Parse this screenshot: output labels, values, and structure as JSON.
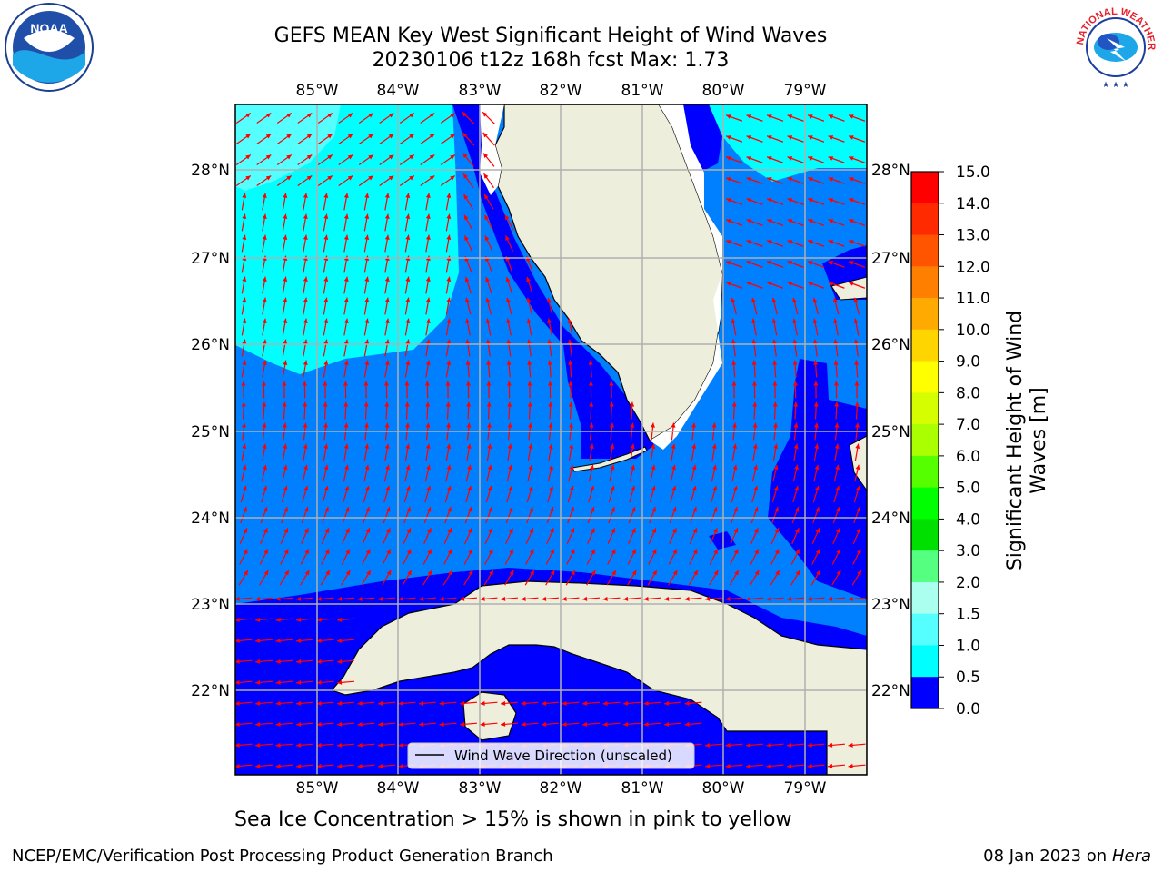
{
  "title_line1": "GEFS MEAN Key West Significant Height of Wind Waves",
  "title_line2": "20230106 t12z 168h fcst   Max: 1.73",
  "lon_ticks": [
    "85°W",
    "84°W",
    "83°W",
    "82°W",
    "81°W",
    "80°W",
    "79°W"
  ],
  "lat_ticks": [
    "28°N",
    "27°N",
    "26°N",
    "25°N",
    "24°N",
    "23°N",
    "22°N"
  ],
  "colorbar": {
    "label": "Significant Height of Wind Waves [m]",
    "label_line1": "Significant Height of Wind",
    "label_line2": "Waves [m]",
    "ticks": [
      "15.0",
      "14.0",
      "13.0",
      "12.0",
      "11.0",
      "10.0",
      "9.0",
      "8.0",
      "7.0",
      "6.0",
      "5.0",
      "4.0",
      "3.0",
      "2.0",
      "1.5",
      "1.0",
      "0.5",
      "0.0"
    ],
    "colors": [
      "#ff0000",
      "#ff2a00",
      "#ff5500",
      "#ff8000",
      "#ffaa00",
      "#ffd500",
      "#ffff00",
      "#d5ff00",
      "#aaff00",
      "#55ff00",
      "#00ff00",
      "#00e000",
      "#55ff80",
      "#aaffee",
      "#55ffff",
      "#00ffff",
      "#0080ff",
      "#0000ff"
    ]
  },
  "legend": {
    "label": "Wind Wave Direction (unscaled)"
  },
  "note": "Sea Ice Concentration > 15% is shown in pink to yellow",
  "footer_left": "NCEP/EMC/Verification Post Processing Product Generation Branch",
  "footer_right_date": "08 Jan 2023 on ",
  "footer_right_host": "Hera",
  "logos": {
    "left": {
      "icon": "noaa-logo",
      "text": "NOAA"
    },
    "right": {
      "icon": "nws-logo",
      "text": "NATIONAL WEATHER SERVICE"
    }
  },
  "colors": {
    "land": "#eeeedc",
    "wave_0_05": "#0000ff",
    "wave_05_10": "#0080ff",
    "wave_10_15": "#00ffff",
    "arrow": "#ff0000",
    "grid": "#b0b0b0"
  }
}
